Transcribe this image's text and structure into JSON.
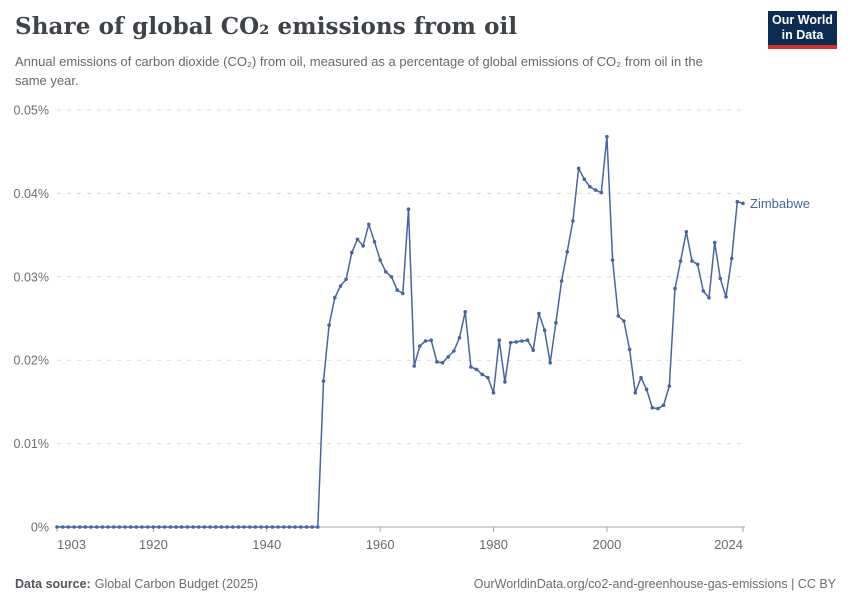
{
  "logo": {
    "line1": "Our World",
    "line2": "in Data"
  },
  "header": {
    "title": "Share of global CO₂ emissions from oil",
    "subtitle": "Annual emissions of carbon dioxide (CO₂) from oil, measured as a percentage of global emissions of CO₂ from oil in the same year."
  },
  "chart_data": {
    "type": "line",
    "title": "Share of global CO₂ emissions from oil",
    "entity_label": "Zimbabwe",
    "unit": "%",
    "line_color": "#4665a2",
    "grid": "horizontal-dashed",
    "legend_position": "end-of-line-label",
    "xlim": [
      1903,
      2024
    ],
    "ylim": [
      0,
      0.05
    ],
    "xticks": [
      1903,
      1920,
      1940,
      1960,
      1980,
      2000,
      2024
    ],
    "yticks": [
      {
        "value": 0,
        "label": "0%"
      },
      {
        "value": 0.01,
        "label": "0.01%"
      },
      {
        "value": 0.02,
        "label": "0.02%"
      },
      {
        "value": 0.03,
        "label": "0.03%"
      },
      {
        "value": 0.04,
        "label": "0.04%"
      },
      {
        "value": 0.05,
        "label": "0.05%"
      }
    ],
    "years": [
      1903,
      1904,
      1905,
      1906,
      1907,
      1908,
      1909,
      1910,
      1911,
      1912,
      1913,
      1914,
      1915,
      1916,
      1917,
      1918,
      1919,
      1920,
      1921,
      1922,
      1923,
      1924,
      1925,
      1926,
      1927,
      1928,
      1929,
      1930,
      1931,
      1932,
      1933,
      1934,
      1935,
      1936,
      1937,
      1938,
      1939,
      1940,
      1941,
      1942,
      1943,
      1944,
      1945,
      1946,
      1947,
      1948,
      1949,
      1950,
      1951,
      1952,
      1953,
      1954,
      1955,
      1956,
      1957,
      1958,
      1959,
      1960,
      1961,
      1962,
      1963,
      1964,
      1965,
      1966,
      1967,
      1968,
      1969,
      1970,
      1971,
      1972,
      1973,
      1974,
      1975,
      1976,
      1977,
      1978,
      1979,
      1980,
      1981,
      1982,
      1983,
      1984,
      1985,
      1986,
      1987,
      1988,
      1989,
      1990,
      1991,
      1992,
      1993,
      1994,
      1995,
      1996,
      1997,
      1998,
      1999,
      2000,
      2001,
      2002,
      2003,
      2004,
      2005,
      2006,
      2007,
      2008,
      2009,
      2010,
      2011,
      2012,
      2013,
      2014,
      2015,
      2016,
      2017,
      2018,
      2019,
      2020,
      2021,
      2022,
      2023,
      2024
    ],
    "values": [
      0,
      0,
      0,
      0,
      0,
      0,
      0,
      0,
      0,
      0,
      0,
      0,
      0,
      0,
      0,
      0,
      0,
      0,
      0,
      0,
      0,
      0,
      0,
      0,
      0,
      0,
      0,
      0,
      0,
      0,
      0,
      0,
      0,
      0,
      0,
      0,
      0,
      0,
      0,
      0,
      0,
      0,
      0,
      0,
      0,
      0,
      0,
      0.0175,
      0.0242,
      0.0275,
      0.0289,
      0.0297,
      0.0329,
      0.0345,
      0.0337,
      0.0363,
      0.0342,
      0.032,
      0.0306,
      0.03,
      0.0284,
      0.028,
      0.0381,
      0.0193,
      0.0217,
      0.0223,
      0.0224,
      0.0198,
      0.0197,
      0.0204,
      0.0211,
      0.0227,
      0.0258,
      0.0192,
      0.0189,
      0.0183,
      0.0179,
      0.0161,
      0.0224,
      0.0174,
      0.0221,
      0.0222,
      0.0223,
      0.0224,
      0.0212,
      0.0256,
      0.0236,
      0.0197,
      0.0245,
      0.0295,
      0.033,
      0.0367,
      0.043,
      0.0417,
      0.0408,
      0.0404,
      0.0401,
      0.0468,
      0.032,
      0.0253,
      0.0247,
      0.0213,
      0.0161,
      0.0179,
      0.0165,
      0.0143,
      0.0142,
      0.0146,
      0.0169,
      0.0286,
      0.0319,
      0.0354,
      0.0319,
      0.0315,
      0.0283,
      0.0275,
      0.0341,
      0.0298,
      0.0276,
      0.0322,
      0.039,
      0.0388
    ]
  },
  "footer": {
    "source_label": "Data source:",
    "source_value": "Global Carbon Budget (2025)",
    "rights": "OurWorldinData.org/co2-and-greenhouse-gas-emissions | CC BY"
  }
}
